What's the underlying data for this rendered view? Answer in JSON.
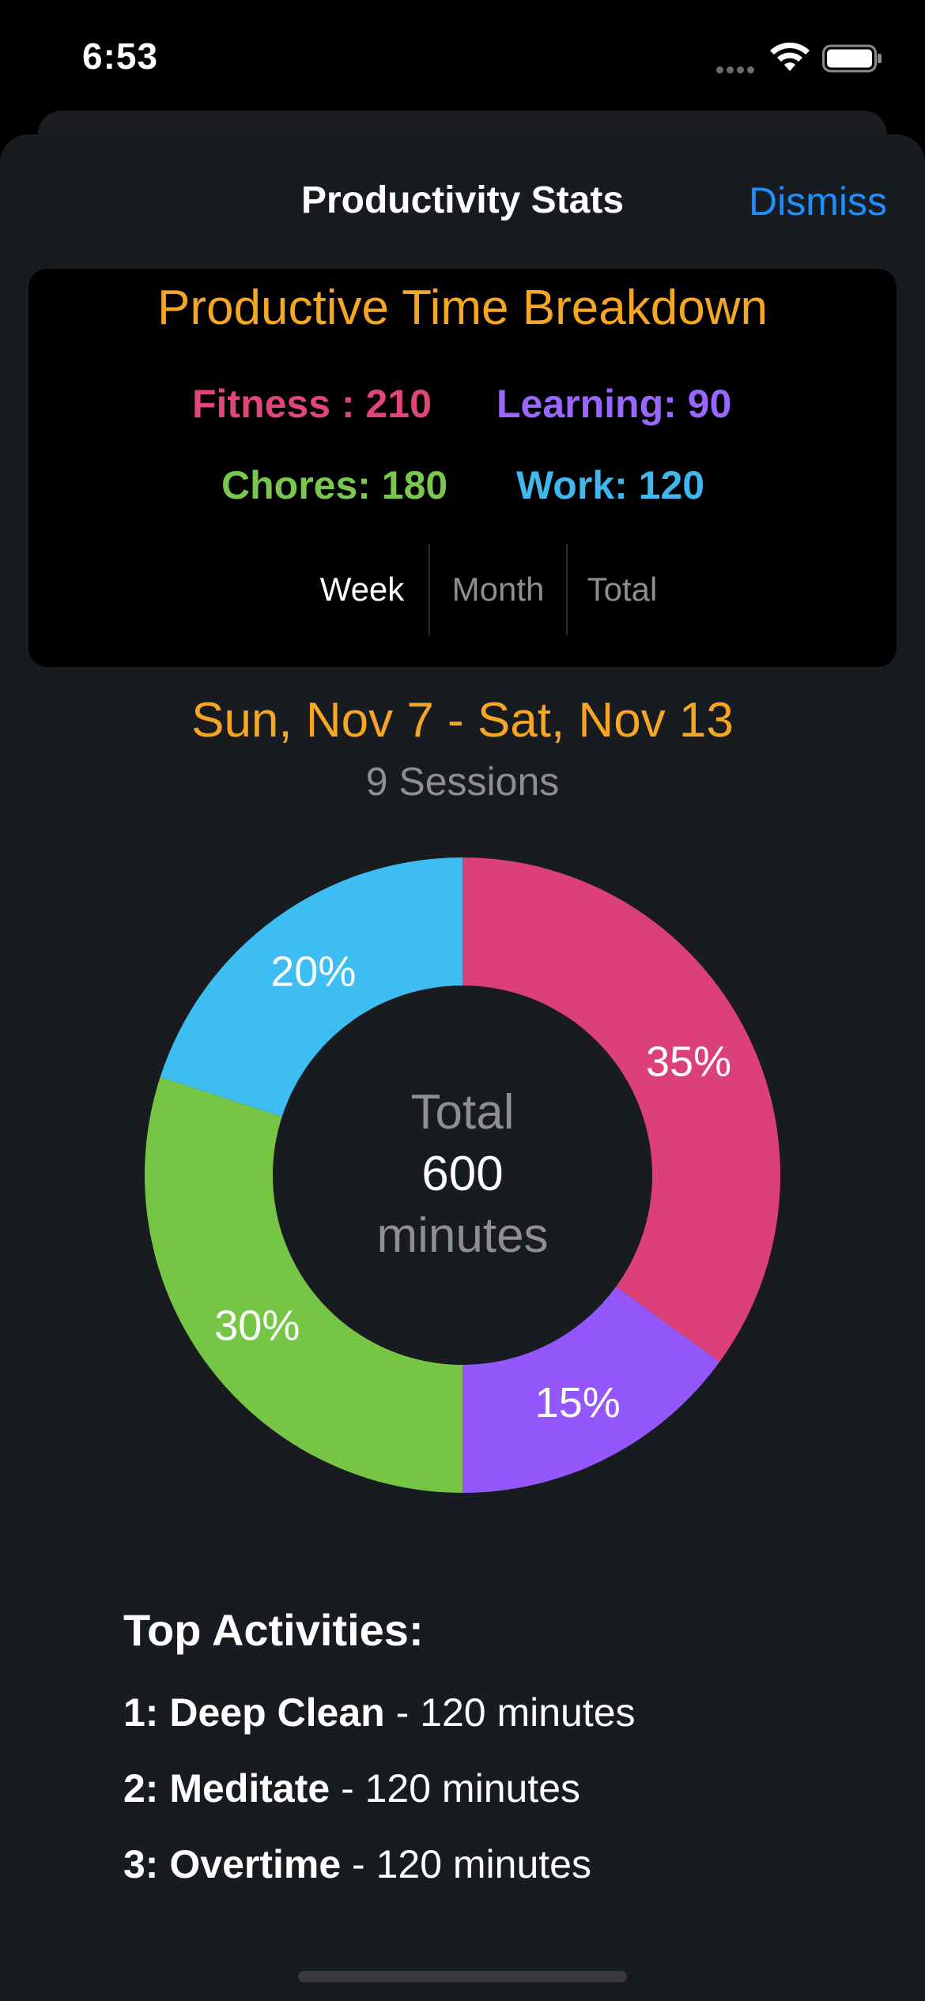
{
  "status_bar": {
    "time": "6:53"
  },
  "sheet": {
    "title": "Productivity Stats",
    "dismiss_label": "Dismiss"
  },
  "breakdown": {
    "title": "Productive Time Breakdown",
    "legend": [
      {
        "text": "Fitness : 210",
        "color": "#e0457b"
      },
      {
        "text": "Learning: 90",
        "color": "#9966ff"
      },
      {
        "text": "Chores: 180",
        "color": "#7ac74f"
      },
      {
        "text": "Work: 120",
        "color": "#3fb8f0"
      }
    ],
    "segments": [
      {
        "label": "Week",
        "selected": true
      },
      {
        "label": "Month",
        "selected": false
      },
      {
        "label": "Total",
        "selected": false
      }
    ]
  },
  "period": {
    "date_range": "Sun, Nov 7 - Sat, Nov 13",
    "sessions": "9 Sessions"
  },
  "chart_data": {
    "type": "pie",
    "title": "",
    "slices": [
      {
        "label": "Fitness",
        "value": 210,
        "percent_label": "35%",
        "color": "#dc4079"
      },
      {
        "label": "Learning",
        "value": 90,
        "percent_label": "15%",
        "color": "#9357fb"
      },
      {
        "label": "Chores",
        "value": 180,
        "percent_label": "30%",
        "color": "#76c545"
      },
      {
        "label": "Work",
        "value": 120,
        "percent_label": "20%",
        "color": "#3dbdf2"
      }
    ],
    "center": {
      "line1": "Total",
      "value": "600",
      "line3": "minutes"
    }
  },
  "top_activities": {
    "heading": "Top Activities:",
    "items": [
      {
        "rank": "1:",
        "name": "Deep Clean",
        "detail": " - 120 minutes"
      },
      {
        "rank": "2:",
        "name": "Meditate",
        "detail": " - 120 minutes"
      },
      {
        "rank": "3:",
        "name": "Overtime",
        "detail": " - 120 minutes"
      }
    ]
  }
}
